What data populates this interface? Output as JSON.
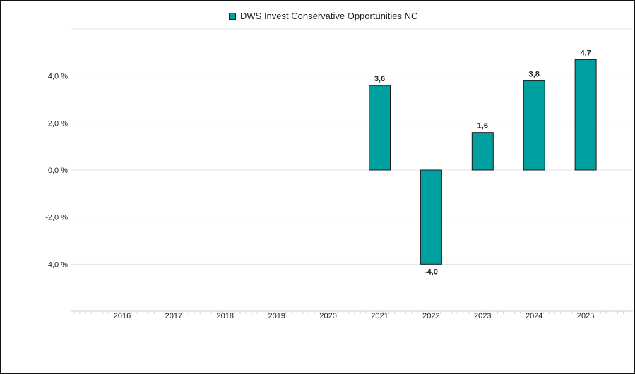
{
  "chart_data": {
    "type": "bar",
    "categories": [
      "2016",
      "2017",
      "2018",
      "2019",
      "2020",
      "2021",
      "2022",
      "2023",
      "2024",
      "2025"
    ],
    "series": [
      {
        "name": "DWS Invest Conservative Opportunities NC",
        "values": [
          null,
          null,
          null,
          null,
          null,
          3.6,
          -4.0,
          1.6,
          3.8,
          4.7
        ],
        "labels": [
          "",
          "",
          "",
          "",
          "",
          "3,6",
          "-4,0",
          "1,6",
          "3,8",
          "4,7"
        ],
        "color": "#00A0A0"
      }
    ],
    "yticks": [
      4.0,
      2.0,
      0.0,
      -2.0,
      -4.0
    ],
    "ytick_labels": [
      "4,0 %",
      "2,0 %",
      "0,0 %",
      "-2,0 %",
      "-4,0 %"
    ],
    "ylim": [
      -6.0,
      6.0
    ],
    "grid": true,
    "legend_position": "top-center"
  }
}
